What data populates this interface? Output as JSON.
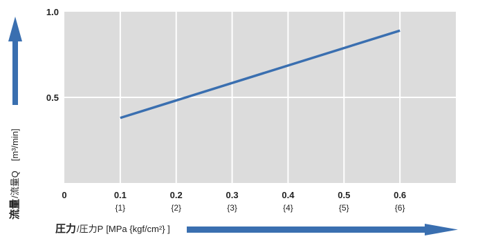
{
  "chart_data": {
    "type": "line",
    "x": [
      0.1,
      0.6
    ],
    "series": [
      {
        "values": [
          0.38,
          0.89
        ],
        "color": "#3a6fb0"
      }
    ],
    "xlim": [
      0,
      0.7
    ],
    "ylim": [
      0,
      1.0
    ],
    "x_ticks": [
      {
        "value": 0,
        "label": "0",
        "sublabel": ""
      },
      {
        "value": 0.1,
        "label": "0.1",
        "sublabel": "{1}"
      },
      {
        "value": 0.2,
        "label": "0.2",
        "sublabel": "{2}"
      },
      {
        "value": 0.3,
        "label": "0.3",
        "sublabel": "{3}"
      },
      {
        "value": 0.4,
        "label": "0.4",
        "sublabel": "{4}"
      },
      {
        "value": 0.5,
        "label": "0.5",
        "sublabel": "{5}"
      },
      {
        "value": 0.6,
        "label": "0.6",
        "sublabel": "{6}"
      }
    ],
    "y_ticks": [
      {
        "value": 0.5,
        "label": "0.5"
      },
      {
        "value": 1.0,
        "label": "1.0"
      }
    ],
    "xlabel_main": "圧力",
    "xlabel_sub": "/圧力P",
    "xlabel_unit": "[MPa {kgf/cm²} ]",
    "ylabel_main": "流量",
    "ylabel_sub": "/流量Q",
    "ylabel_unit": "[m³/min]",
    "grid": true,
    "colors": {
      "plot_background": "#dcdcdc",
      "grid": "#ffffff",
      "line": "#3a6fb0",
      "arrow": "#3a6fb0"
    }
  }
}
